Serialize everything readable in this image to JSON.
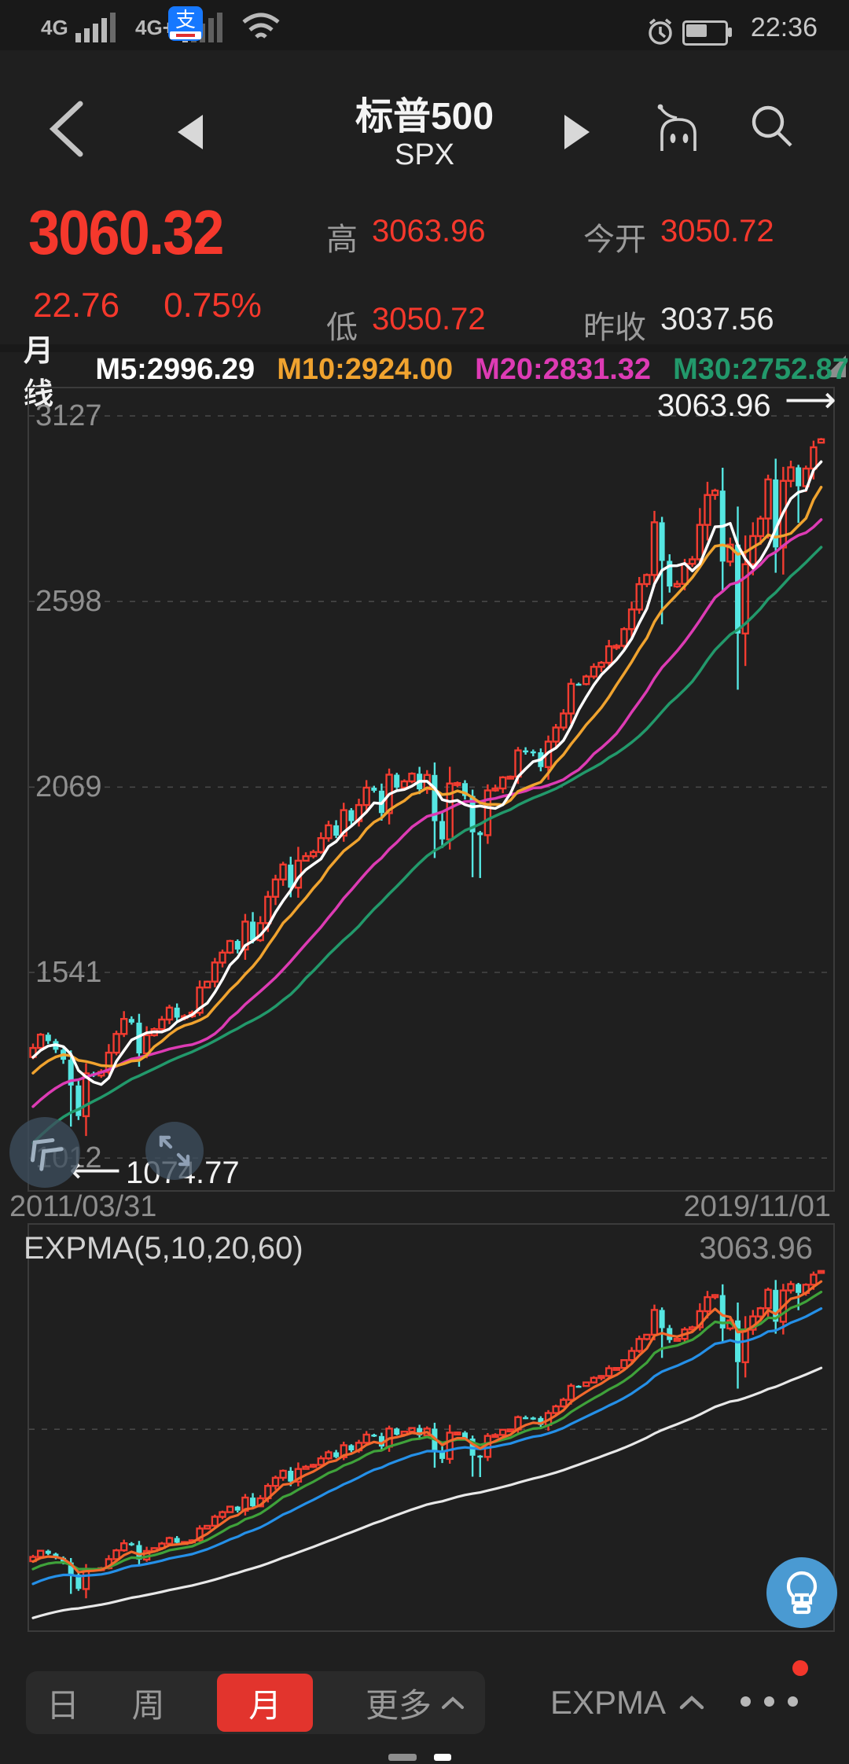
{
  "status": {
    "net1": "4G",
    "net2": "4G+",
    "time": "22:36",
    "icons": [
      "signal-bars",
      "signal-bars-2",
      "wifi",
      "alipay",
      "alarm",
      "battery"
    ]
  },
  "header": {
    "title": "标普500",
    "subtitle": "SPX"
  },
  "quote": {
    "price": "3060.32",
    "change": "22.76",
    "change_pct": "0.75%",
    "high_label": "高",
    "high": "3063.96",
    "low_label": "低",
    "low": "3050.72",
    "open_label": "今开",
    "open": "3050.72",
    "prev_label": "昨收",
    "prev_close": "3037.56",
    "up_color": "#f5382c"
  },
  "chart_data": {
    "type": "candlestick",
    "title": "标普500 SPX monthly candles",
    "period_label": "月线",
    "x_start": "2011/03/31",
    "x_end": "2019/11/01",
    "y_ticks": [
      3127,
      2598,
      2069,
      1541,
      1012
    ],
    "y_range": [
      925,
      3210
    ],
    "grid": "dashed-horizontal",
    "high_annotation": "3063.96",
    "low_annotation": "1074.77",
    "up_color": "#f23c30",
    "down_color": "#55e6e2",
    "ma_legend": [
      {
        "label": "M5:2996.29",
        "color": "#ffffff",
        "window": 5
      },
      {
        "label": "M10:2924.00",
        "color": "#f0a32f",
        "window": 10
      },
      {
        "label": "M20:2831.32",
        "color": "#dd3bb4",
        "window": 20
      },
      {
        "label": "M30:2752.87",
        "color": "#22996b",
        "window": 30
      }
    ],
    "closes": [
      1325.83,
      1363.61,
      1345.2,
      1320.64,
      1292.28,
      1218.89,
      1131.42,
      1253.3,
      1246.96,
      1257.6,
      1312.41,
      1365.68,
      1408.47,
      1397.91,
      1310.33,
      1362.16,
      1379.32,
      1406.58,
      1440.67,
      1412.16,
      1416.18,
      1426.19,
      1498.11,
      1514.68,
      1569.19,
      1597.57,
      1630.74,
      1606.28,
      1685.73,
      1632.97,
      1681.55,
      1756.54,
      1805.81,
      1848.36,
      1782.59,
      1859.45,
      1872.34,
      1883.95,
      1923.57,
      1960.23,
      1930.67,
      2003.37,
      1972.29,
      2018.05,
      2067.56,
      2058.9,
      1994.99,
      2104.5,
      2067.89,
      2085.51,
      2107.39,
      2063.11,
      2103.84,
      1972.18,
      1920.03,
      2079.36,
      2080.41,
      2043.94,
      1940.24,
      1932.23,
      2059.74,
      2065.3,
      2096.95,
      2098.86,
      2173.6,
      2170.95,
      2168.27,
      2126.15,
      2198.81,
      2238.83,
      2278.87,
      2363.64,
      2362.72,
      2384.2,
      2411.8,
      2423.41,
      2470.3,
      2471.65,
      2519.36,
      2575.26,
      2647.58,
      2673.61,
      2823.81,
      2713.83,
      2640.87,
      2648.05,
      2705.27,
      2718.37,
      2816.29,
      2901.52,
      2913.98,
      2711.74,
      2760.17,
      2506.85,
      2704.1,
      2784.49,
      2834.4,
      2945.83,
      2752.06,
      2941.76,
      2980.38,
      2926.46,
      2976.74,
      3037.56,
      3060.32
    ],
    "wick_overrides": {
      "0": {
        "open": 1300.0
      },
      "5": {
        "low": 1101.54
      },
      "7": {
        "low": 1074.77
      },
      "53": {
        "low": 1867.01
      },
      "58": {
        "low": 1812.29
      },
      "59": {
        "low": 1810.1
      },
      "83": {
        "low": 2532.69
      },
      "93": {
        "low": 2346.58
      },
      "101": {
        "low": 2822.12
      },
      "104": {
        "open": 3050.72,
        "low": 3050.72,
        "high": 3063.96
      }
    },
    "expma": {
      "label": "EXPMA(5,10,20,60)",
      "value_label": "3063.96",
      "y_range": [
        890,
        3350
      ],
      "lines": [
        {
          "name": "EXP5",
          "color": "#f2692c",
          "window": 5
        },
        {
          "name": "EXP10",
          "color": "#3fa23a",
          "window": 10
        },
        {
          "name": "EXP20",
          "color": "#2590e8",
          "window": 20
        },
        {
          "name": "EXP60",
          "color": "#e8e8e8",
          "window": 60
        }
      ]
    }
  },
  "toolbar": {
    "periods": [
      {
        "label": "日",
        "active": false
      },
      {
        "label": "周",
        "active": false
      },
      {
        "label": "月",
        "active": true
      },
      {
        "label": "更多",
        "active": false
      }
    ],
    "indicator": "EXPMA",
    "active_bg": "#e2342d"
  }
}
